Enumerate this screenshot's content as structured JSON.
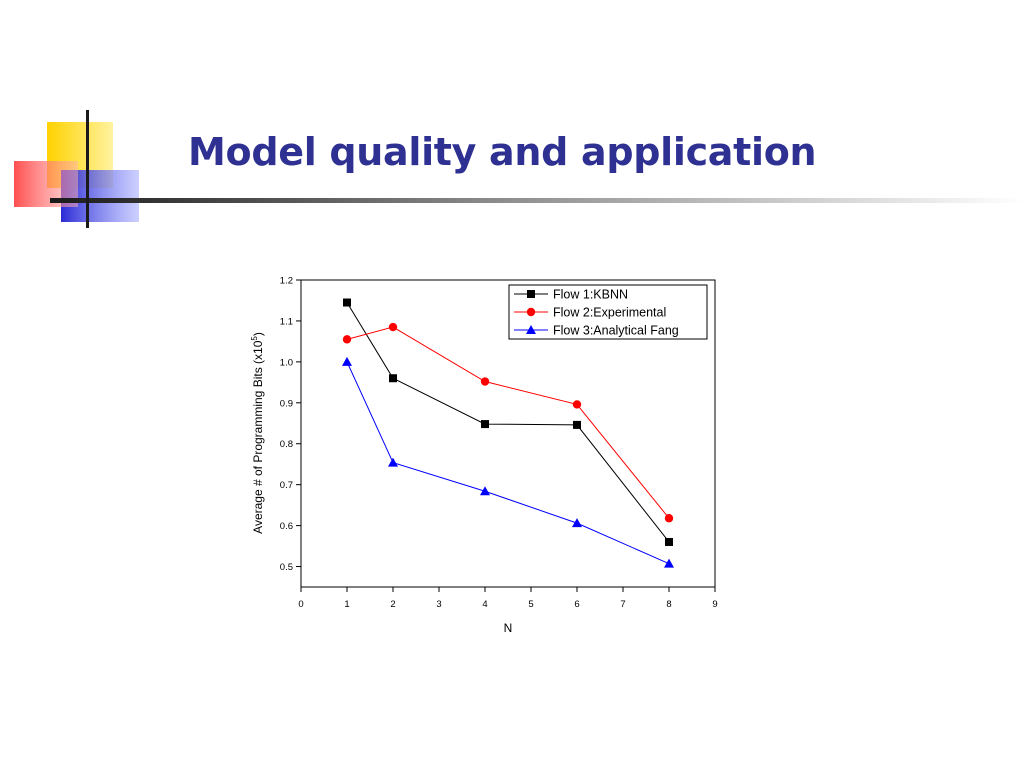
{
  "slide": {
    "title": "Model quality and application"
  },
  "chart_data": {
    "type": "line",
    "title": "",
    "xlabel": "N",
    "ylabel_prefix": "Average # of Programming Bits (x10",
    "ylabel_exponent": "5",
    "ylabel_suffix": ")",
    "xlim": [
      0,
      9
    ],
    "ylim": [
      0.45,
      1.2
    ],
    "x_ticks": [
      0,
      1,
      2,
      3,
      4,
      5,
      6,
      7,
      8,
      9
    ],
    "y_ticks": [
      0.5,
      0.6,
      0.7,
      0.8,
      0.9,
      1.0,
      1.1,
      1.2
    ],
    "grid": false,
    "legend_position": "top-right",
    "x": [
      1,
      2,
      4,
      6,
      8
    ],
    "series": [
      {
        "name": "Flow 1:KBNN",
        "color": "#000000",
        "marker": "square",
        "values": [
          1.145,
          0.96,
          0.848,
          0.846,
          0.56
        ]
      },
      {
        "name": "Flow 2:Experimental",
        "color": "#ff0000",
        "marker": "circle",
        "values": [
          1.055,
          1.085,
          0.952,
          0.896,
          0.618
        ]
      },
      {
        "name": "Flow 3:Analytical Fang",
        "color": "#0000ff",
        "marker": "triangle",
        "values": [
          1.0,
          0.754,
          0.684,
          0.606,
          0.507
        ]
      }
    ]
  }
}
